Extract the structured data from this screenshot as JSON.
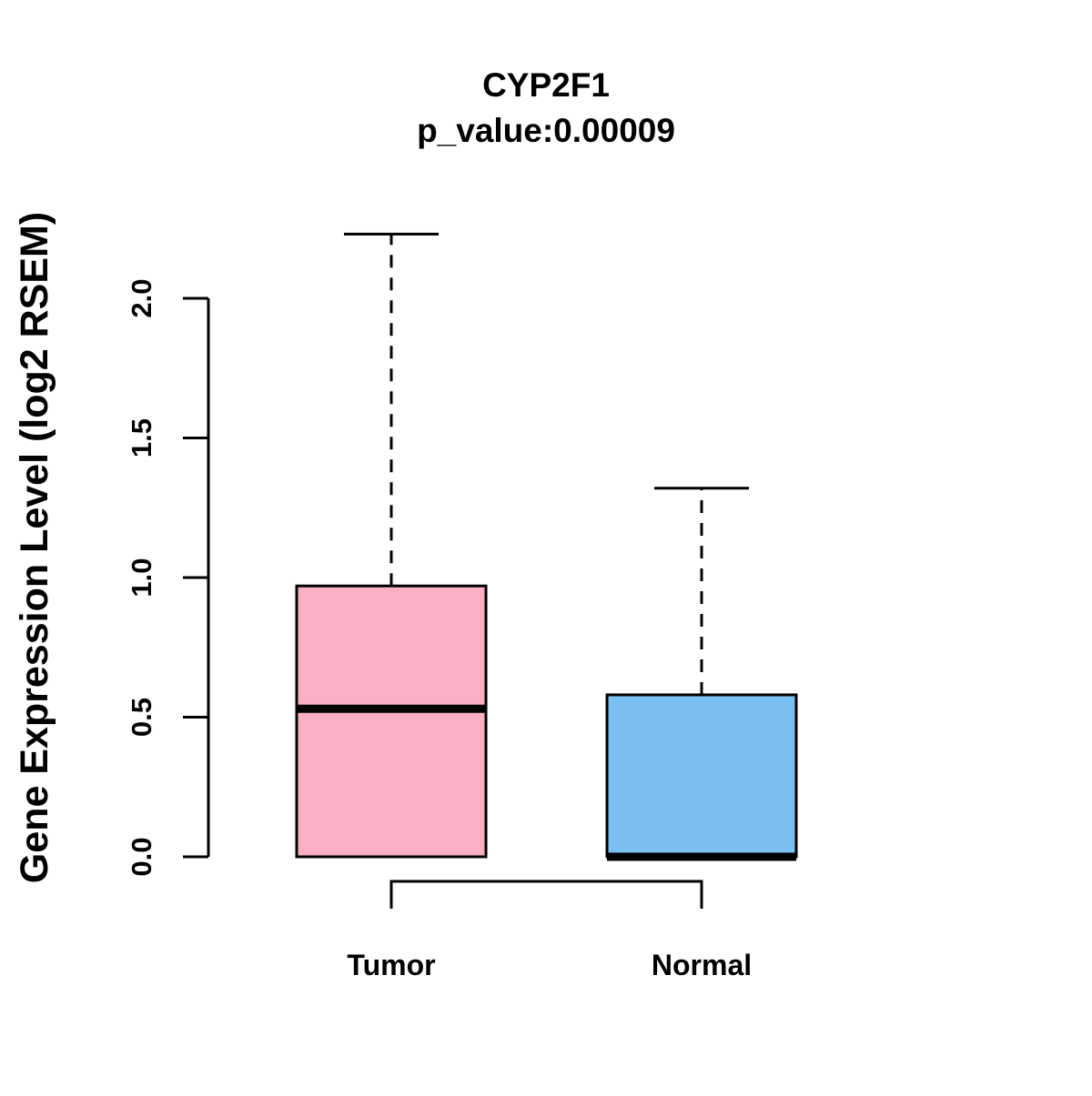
{
  "chart_data": {
    "type": "boxplot",
    "title": "CYP2F1",
    "subtitle": "p_value:0.00009",
    "xlabel": "",
    "ylabel": "Gene Expression Level (log2 RSEM)",
    "categories": [
      "Tumor",
      "Normal"
    ],
    "ytick_labels": [
      "0.0",
      "0.5",
      "1.0",
      "1.5",
      "2.0"
    ],
    "ytick_values": [
      0,
      0.5,
      1.0,
      1.5,
      2.0
    ],
    "ylim": [
      0,
      2.3
    ],
    "grid": false,
    "legend": "none",
    "line_color": "#000000",
    "background_color": "#ffffff",
    "series": [
      {
        "name": "Tumor",
        "color": "#FBB0C4",
        "whisker_low": 0.0,
        "q1": 0.0,
        "median": 0.53,
        "q3": 0.97,
        "whisker_high": 2.23,
        "outliers": []
      },
      {
        "name": "Normal",
        "color": "#79BFF2",
        "whisker_low": 0.0,
        "q1": 0.0,
        "median": 0.0,
        "q3": 0.58,
        "whisker_high": 1.32,
        "outliers": []
      }
    ],
    "comparison_bracket": {
      "groups": [
        "Tumor",
        "Normal"
      ]
    }
  }
}
